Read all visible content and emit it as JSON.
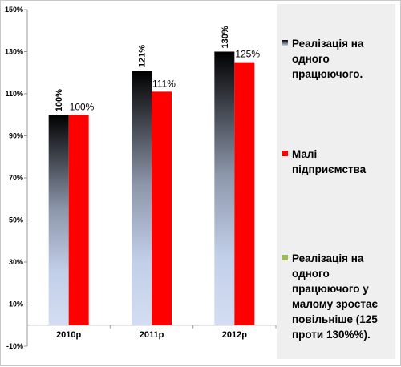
{
  "chart_data": {
    "type": "bar",
    "categories": [
      "2010р",
      "2011р",
      "2012р"
    ],
    "series": [
      {
        "name": "Реалізація на одного працюючого.",
        "values": [
          100,
          121,
          130
        ],
        "labels": [
          "100%",
          "121%",
          "130%"
        ],
        "color": "gradient-black-to-lightblue"
      },
      {
        "name": "Малі підприємства",
        "values": [
          100,
          111,
          125
        ],
        "labels": [
          "100%",
          "111%",
          "125%"
        ],
        "color": "#ff0000"
      }
    ],
    "ylim": [
      -10,
      150
    ],
    "yticks": [
      "-10%",
      "10%",
      "30%",
      "50%",
      "70%",
      "90%",
      "110%",
      "130%",
      "150%"
    ],
    "xlabel": "",
    "ylabel": "",
    "grid": false,
    "legend_position": "right"
  },
  "legend": [
    {
      "text": "Реалізація на одного працюючого.",
      "swatch": "gradient"
    },
    {
      "text": "Малі підприємства",
      "swatch": "#ff0000"
    },
    {
      "text": "Реалізація на одного працюючого у малому зростає повільніше (125 проти 130%%).",
      "swatch": "#9bbb59"
    }
  ],
  "colors": {
    "bar_gradient_top": "#000000",
    "bar_gradient_bottom": "#c5d3ee",
    "red": "#ff0000",
    "green": "#9bbb59",
    "legend_bg": "#efefef"
  }
}
